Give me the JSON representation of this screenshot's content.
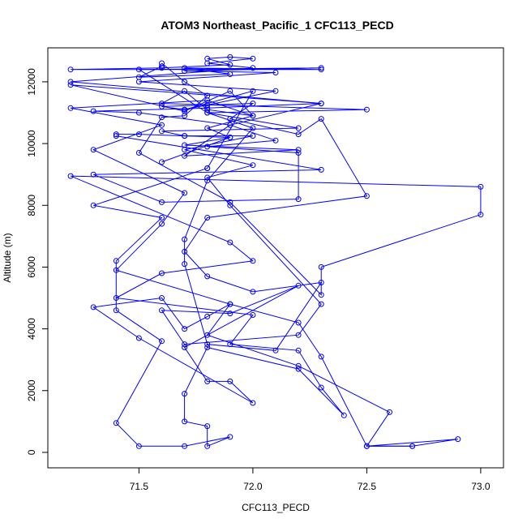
{
  "chart_data": {
    "type": "line",
    "title": "ATOM3 Northeast_Pacific_1 CFC113_PECD",
    "xlabel": "CFC113_PECD",
    "ylabel": "Altitude (m)",
    "xlim": [
      71.1,
      73.1
    ],
    "ylim": [
      -500,
      13100
    ],
    "x_ticks": [
      71.5,
      72.0,
      72.5,
      73.0
    ],
    "x_tick_labels": [
      "71.5",
      "72.0",
      "72.5",
      "73.0"
    ],
    "y_ticks": [
      0,
      2000,
      4000,
      6000,
      8000,
      10000,
      12000
    ],
    "y_tick_labels": [
      "0",
      "2000",
      "4000",
      "6000",
      "8000",
      "10000",
      "12000"
    ],
    "grid": false,
    "color": "#0000ff",
    "series": [
      {
        "points": [
          [
            72.5,
            200
          ],
          [
            72.7,
            200
          ],
          [
            72.9,
            430
          ],
          [
            72.5,
            200
          ],
          [
            72.6,
            1300
          ],
          [
            72.2,
            2800
          ],
          [
            71.8,
            3800
          ],
          [
            71.9,
            4800
          ],
          [
            71.4,
            5900
          ],
          [
            71.6,
            7400
          ],
          [
            71.7,
            8400
          ],
          [
            71.3,
            9800
          ],
          [
            71.6,
            10600
          ],
          [
            71.2,
            11150
          ],
          [
            71.8,
            11400
          ],
          [
            72.0,
            10900
          ],
          [
            71.8,
            10500
          ],
          [
            71.9,
            10200
          ],
          [
            71.7,
            10250
          ],
          [
            71.5,
            10300
          ],
          [
            71.4,
            10300
          ]
        ]
      },
      {
        "points": [
          [
            71.4,
            10250
          ],
          [
            72.3,
            9150
          ],
          [
            71.3,
            9000
          ],
          [
            71.6,
            8100
          ],
          [
            72.2,
            8200
          ],
          [
            72.2,
            9700
          ],
          [
            71.8,
            9900
          ],
          [
            72.1,
            10100
          ],
          [
            71.9,
            10600
          ],
          [
            71.5,
            11000
          ],
          [
            71.3,
            11050
          ],
          [
            71.8,
            11150
          ],
          [
            72.3,
            11300
          ],
          [
            71.2,
            12000
          ],
          [
            72.0,
            12450
          ],
          [
            71.8,
            12600
          ],
          [
            72.0,
            12750
          ],
          [
            71.9,
            12800
          ],
          [
            71.8,
            12750
          ],
          [
            71.9,
            12550
          ],
          [
            71.6,
            12450
          ],
          [
            71.2,
            12400
          ],
          [
            72.3,
            12400
          ],
          [
            71.7,
            12450
          ],
          [
            71.9,
            12250
          ],
          [
            71.5,
            12150
          ],
          [
            71.6,
            12500
          ]
        ]
      },
      {
        "points": [
          [
            71.6,
            12600
          ],
          [
            71.7,
            12000
          ],
          [
            71.8,
            11550
          ],
          [
            71.7,
            10900
          ],
          [
            71.6,
            10850
          ],
          [
            71.5,
            9700
          ],
          [
            71.9,
            8100
          ],
          [
            72.3,
            5100
          ],
          [
            72.3,
            6000
          ],
          [
            73.0,
            7700
          ],
          [
            73.0,
            8600
          ],
          [
            71.2,
            8950
          ],
          [
            71.9,
            6800
          ],
          [
            72.0,
            6200
          ],
          [
            71.6,
            5800
          ],
          [
            71.4,
            5000
          ],
          [
            72.0,
            4450
          ],
          [
            71.9,
            3500
          ],
          [
            72.2,
            3300
          ],
          [
            72.3,
            2100
          ],
          [
            72.4,
            1200
          ],
          [
            72.2,
            2700
          ],
          [
            71.8,
            3400
          ],
          [
            71.7,
            1900
          ],
          [
            71.7,
            1000
          ],
          [
            71.8,
            850
          ],
          [
            71.8,
            200
          ],
          [
            71.9,
            500
          ],
          [
            71.7,
            200
          ],
          [
            71.5,
            200
          ],
          [
            71.4,
            950
          ],
          [
            71.6,
            3600
          ],
          [
            71.4,
            4600
          ],
          [
            71.4,
            6200
          ],
          [
            71.6,
            7600
          ],
          [
            71.3,
            8000
          ],
          [
            71.8,
            9200
          ]
        ]
      },
      {
        "points": [
          [
            71.8,
            9200
          ],
          [
            72.0,
            11700
          ],
          [
            71.7,
            11100
          ],
          [
            72.1,
            11700
          ],
          [
            71.5,
            12000
          ],
          [
            72.1,
            12300
          ],
          [
            71.7,
            12350
          ],
          [
            72.3,
            12450
          ],
          [
            71.5,
            12400
          ],
          [
            71.8,
            11000
          ],
          [
            72.2,
            10500
          ],
          [
            71.6,
            10400
          ],
          [
            71.7,
            10250
          ],
          [
            72.0,
            10250
          ],
          [
            71.7,
            9800
          ],
          [
            72.0,
            9300
          ],
          [
            71.8,
            8900
          ],
          [
            71.9,
            8000
          ],
          [
            72.3,
            4800
          ],
          [
            72.2,
            3800
          ],
          [
            71.7,
            3500
          ],
          [
            71.6,
            4600
          ],
          [
            71.9,
            4500
          ],
          [
            72.2,
            5400
          ],
          [
            71.7,
            3400
          ],
          [
            71.8,
            2300
          ],
          [
            71.9,
            2300
          ],
          [
            72.0,
            1600
          ],
          [
            71.5,
            3700
          ],
          [
            71.3,
            4700
          ],
          [
            71.6,
            5000
          ],
          [
            71.7,
            4000
          ],
          [
            71.8,
            4400
          ],
          [
            71.9,
            4800
          ],
          [
            72.2,
            4200
          ],
          [
            72.3,
            3100
          ],
          [
            72.5,
            200
          ],
          [
            72.7,
            200
          ]
        ]
      },
      {
        "points": [
          [
            71.7,
            11100
          ],
          [
            71.6,
            11200
          ],
          [
            71.8,
            11250
          ],
          [
            72.0,
            11300
          ],
          [
            71.9,
            10800
          ],
          [
            72.2,
            10300
          ],
          [
            72.3,
            10800
          ],
          [
            72.5,
            8300
          ],
          [
            71.8,
            7600
          ],
          [
            71.7,
            6500
          ],
          [
            71.8,
            5700
          ],
          [
            72.0,
            5200
          ],
          [
            72.3,
            5500
          ],
          [
            72.1,
            3300
          ],
          [
            71.8,
            3500
          ],
          [
            71.7,
            6100
          ],
          [
            71.7,
            6900
          ],
          [
            71.8,
            8800
          ],
          [
            72.0,
            10500
          ],
          [
            71.8,
            11000
          ],
          [
            72.5,
            11100
          ],
          [
            71.6,
            11300
          ],
          [
            71.7,
            11700
          ],
          [
            71.8,
            11100
          ],
          [
            72.0,
            10900
          ],
          [
            71.9,
            11700
          ],
          [
            71.7,
            11050
          ],
          [
            71.2,
            11900
          ],
          [
            72.3,
            11300
          ],
          [
            71.9,
            10600
          ],
          [
            71.7,
            9600
          ],
          [
            72.2,
            9800
          ],
          [
            71.7,
            9950
          ],
          [
            71.9,
            10200
          ],
          [
            71.6,
            9400
          ]
        ]
      }
    ]
  }
}
